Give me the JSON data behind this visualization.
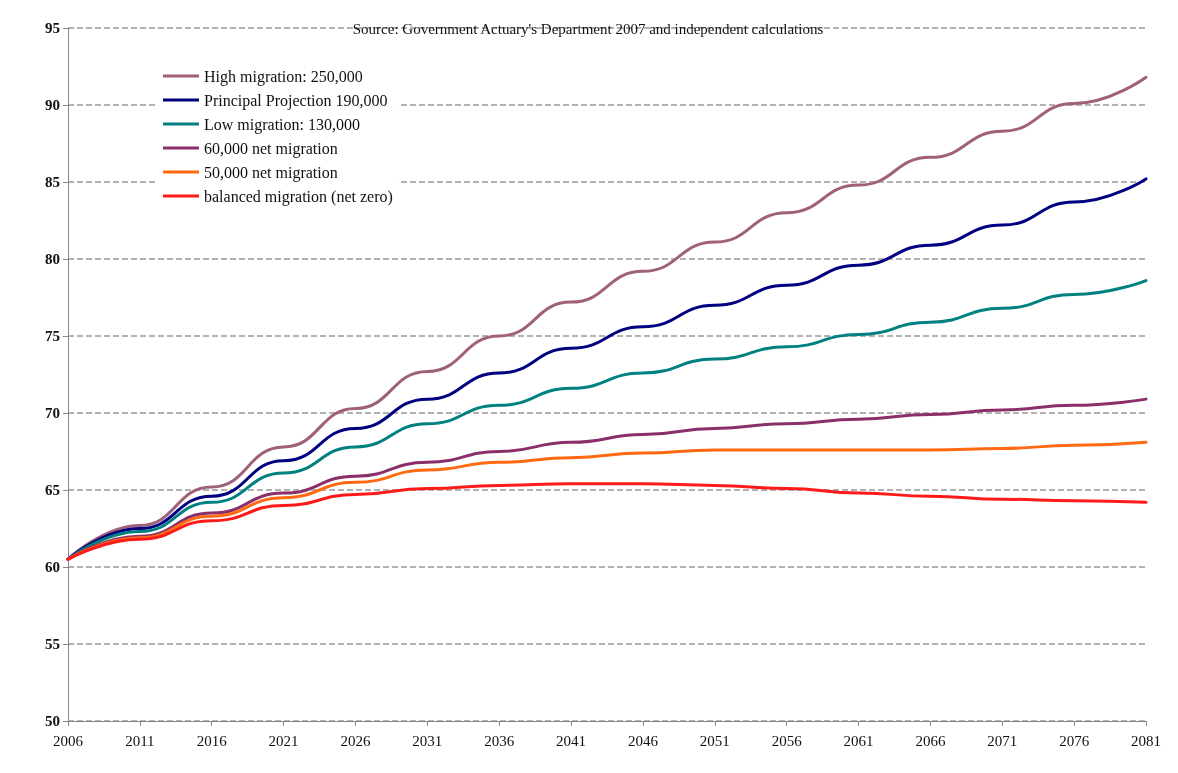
{
  "chart_data": {
    "type": "line",
    "annotations": [
      "Source: Government Actuary's Department 2007 and independent calculations"
    ],
    "categories": [
      "2006",
      "2011",
      "2016",
      "2021",
      "2026",
      "2031",
      "2036",
      "2041",
      "2046",
      "2051",
      "2056",
      "2061",
      "2066",
      "2071",
      "2076",
      "2081"
    ],
    "series": [
      {
        "name": "High migration: 250,000",
        "color": "#a0607a",
        "values": [
          60.5,
          62.7,
          65.2,
          67.8,
          70.3,
          72.7,
          75.0,
          77.2,
          79.2,
          81.1,
          83.0,
          84.8,
          86.6,
          88.3,
          90.1,
          91.8
        ]
      },
      {
        "name": "Principal Projection 190,000",
        "color": "#000080",
        "values": [
          60.5,
          62.5,
          64.6,
          66.9,
          69.0,
          70.9,
          72.6,
          74.2,
          75.6,
          77.0,
          78.3,
          79.6,
          80.9,
          82.2,
          83.7,
          85.2
        ]
      },
      {
        "name": "Low migration: 130,000",
        "color": "#008080",
        "values": [
          60.5,
          62.3,
          64.2,
          66.1,
          67.8,
          69.3,
          70.5,
          71.6,
          72.6,
          73.5,
          74.3,
          75.1,
          75.9,
          76.8,
          77.7,
          78.6
        ]
      },
      {
        "name": "60,000 net migration",
        "color": "#8b2f6a",
        "values": [
          60.5,
          62.0,
          63.5,
          64.8,
          65.9,
          66.8,
          67.5,
          68.1,
          68.6,
          69.0,
          69.3,
          69.6,
          69.9,
          70.2,
          70.5,
          70.9
        ]
      },
      {
        "name": "50,000 net migration",
        "color": "#ff6a13",
        "values": [
          60.5,
          61.9,
          63.3,
          64.5,
          65.5,
          66.3,
          66.8,
          67.1,
          67.4,
          67.6,
          67.6,
          67.6,
          67.6,
          67.7,
          67.9,
          68.1
        ]
      },
      {
        "name": "balanced migration (net zero)",
        "color": "#ff1a1a",
        "values": [
          60.5,
          61.8,
          63.0,
          64.0,
          64.7,
          65.1,
          65.3,
          65.4,
          65.4,
          65.3,
          65.1,
          64.8,
          64.6,
          64.4,
          64.3,
          64.2
        ]
      }
    ],
    "ylim": [
      50,
      95
    ],
    "yticks": [
      50,
      55,
      60,
      65,
      70,
      75,
      80,
      85,
      90,
      95
    ],
    "grid": "y",
    "legend": "top left",
    "marker": "none",
    "line_style": "solid"
  }
}
